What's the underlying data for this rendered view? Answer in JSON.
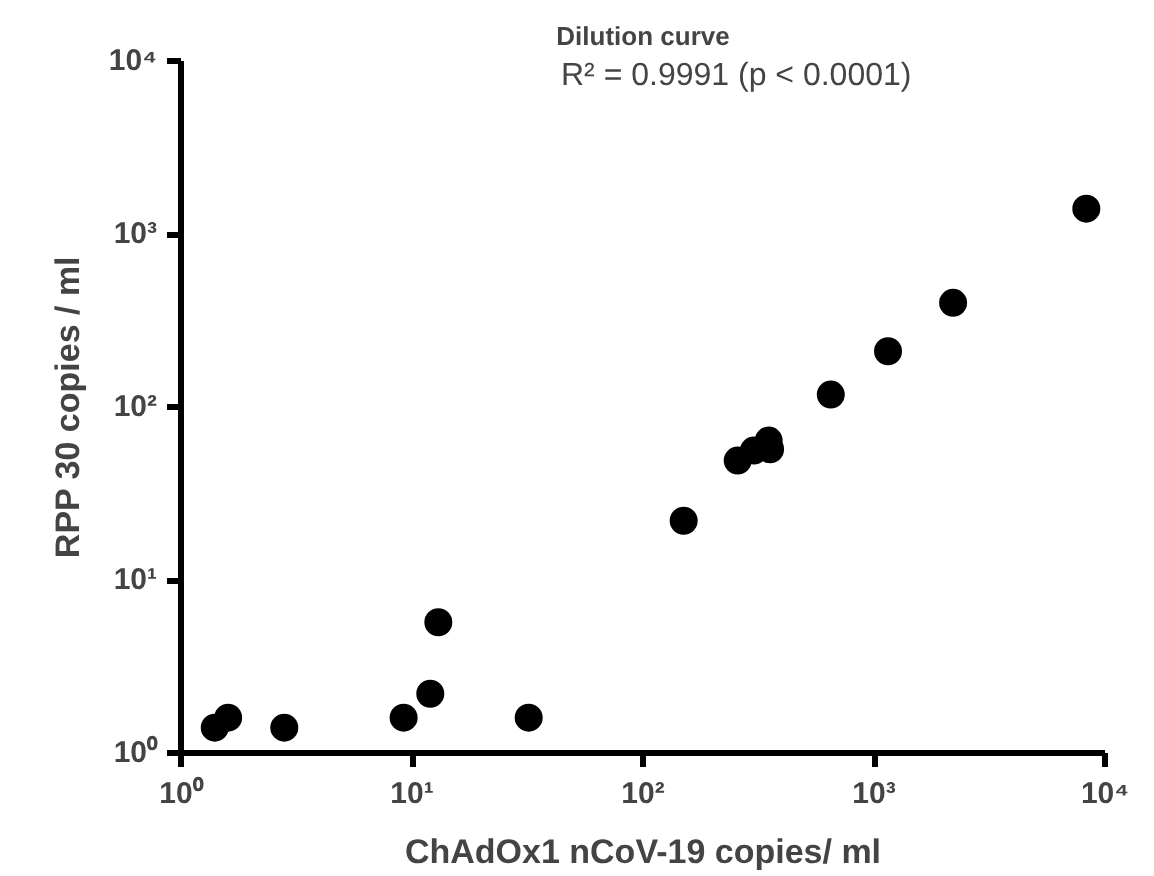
{
  "chart_data": {
    "type": "scatter",
    "title": "Dilution curve",
    "xlabel": "ChAdOx1 nCoV-19 copies/ ml",
    "ylabel": "RPP 30 copies / ml",
    "log": "xy",
    "grid": false,
    "marker": "circle",
    "xlim": [
      1,
      10000
    ],
    "ylim": [
      1,
      10000
    ],
    "xticks": [
      {
        "value": 1,
        "label": "10⁰"
      },
      {
        "value": 10,
        "label": "10¹"
      },
      {
        "value": 100,
        "label": "10²"
      },
      {
        "value": 1000,
        "label": "10³"
      },
      {
        "value": 10000,
        "label": "10⁴"
      }
    ],
    "yticks": [
      {
        "value": 1,
        "label": "10⁰"
      },
      {
        "value": 10,
        "label": "10¹"
      },
      {
        "value": 100,
        "label": "10²"
      },
      {
        "value": 1000,
        "label": "10³"
      },
      {
        "value": 10000,
        "label": "10⁴"
      }
    ],
    "annotations": [
      "R² = 0.9991 (p < 0.0001)"
    ],
    "series": [
      {
        "color": "#000000",
        "x": [
          1.4,
          1.6,
          2.8,
          9.2,
          12,
          13,
          32,
          150,
          257,
          302,
          350,
          355,
          650,
          1150,
          2200,
          8300
        ],
        "values": [
          1.4,
          1.6,
          1.4,
          1.6,
          2.2,
          5.7,
          1.6,
          22,
          49,
          56,
          64,
          57,
          118,
          210,
          400,
          1400
        ]
      }
    ]
  }
}
